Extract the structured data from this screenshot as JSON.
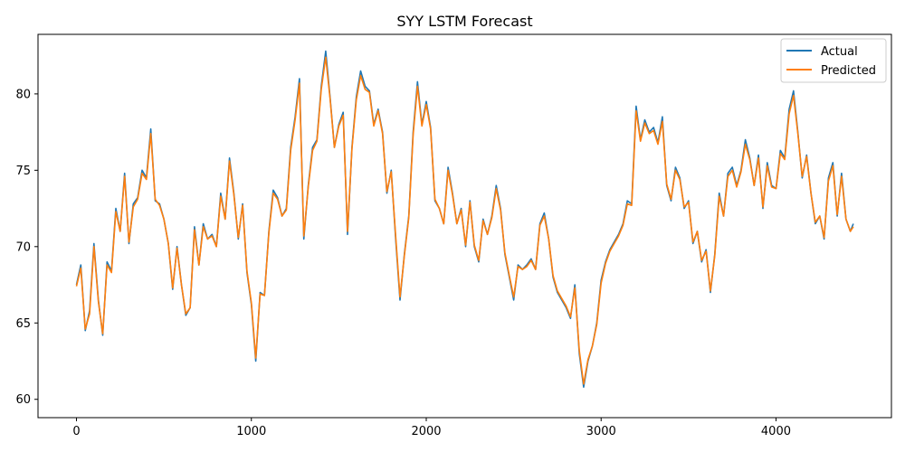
{
  "chart_data": {
    "type": "line",
    "title": "SYY LSTM Forecast",
    "xlabel": "",
    "ylabel": "",
    "xlim": [
      -220,
      4660
    ],
    "ylim": [
      58.8,
      83.9
    ],
    "x_ticks": [
      0,
      1000,
      2000,
      3000,
      4000
    ],
    "x_tick_labels": [
      "0",
      "1000",
      "2000",
      "3000",
      "4000"
    ],
    "y_ticks": [
      60,
      65,
      70,
      75,
      80
    ],
    "y_tick_labels": [
      "60",
      "65",
      "70",
      "75",
      "80"
    ],
    "grid": false,
    "legend_position": "top-right",
    "x": [
      0,
      25,
      50,
      75,
      100,
      125,
      150,
      175,
      200,
      225,
      250,
      275,
      300,
      325,
      350,
      375,
      400,
      425,
      450,
      475,
      500,
      525,
      550,
      575,
      600,
      625,
      650,
      675,
      700,
      725,
      750,
      775,
      800,
      825,
      850,
      875,
      900,
      925,
      950,
      975,
      1000,
      1025,
      1050,
      1075,
      1100,
      1125,
      1150,
      1175,
      1200,
      1225,
      1250,
      1275,
      1300,
      1325,
      1350,
      1375,
      1400,
      1425,
      1450,
      1475,
      1500,
      1525,
      1550,
      1575,
      1600,
      1625,
      1650,
      1675,
      1700,
      1725,
      1750,
      1775,
      1800,
      1825,
      1850,
      1875,
      1900,
      1925,
      1950,
      1975,
      2000,
      2025,
      2050,
      2075,
      2100,
      2125,
      2150,
      2175,
      2200,
      2225,
      2250,
      2275,
      2300,
      2325,
      2350,
      2375,
      2400,
      2425,
      2450,
      2475,
      2500,
      2525,
      2550,
      2575,
      2600,
      2625,
      2650,
      2675,
      2700,
      2725,
      2750,
      2775,
      2800,
      2825,
      2850,
      2875,
      2900,
      2925,
      2950,
      2975,
      3000,
      3025,
      3050,
      3075,
      3100,
      3125,
      3150,
      3175,
      3200,
      3225,
      3250,
      3275,
      3300,
      3325,
      3350,
      3375,
      3400,
      3425,
      3450,
      3475,
      3500,
      3525,
      3550,
      3575,
      3600,
      3625,
      3650,
      3675,
      3700,
      3725,
      3750,
      3775,
      3800,
      3825,
      3850,
      3875,
      3900,
      3925,
      3950,
      3975,
      4000,
      4025,
      4050,
      4075,
      4100,
      4125,
      4150,
      4175,
      4200,
      4225,
      4250,
      4275,
      4300,
      4325,
      4350,
      4375,
      4400,
      4425,
      4442
    ],
    "series": [
      {
        "name": "Actual",
        "color": "#1f77b4",
        "values": [
          67.5,
          68.8,
          64.5,
          65.8,
          70.2,
          66.5,
          64.2,
          69.0,
          68.4,
          72.5,
          71.0,
          74.8,
          70.2,
          72.8,
          73.2,
          75.0,
          74.5,
          77.7,
          73.0,
          72.8,
          71.8,
          70.2,
          67.2,
          70.0,
          67.5,
          65.5,
          66.0,
          71.3,
          68.8,
          71.5,
          70.5,
          70.8,
          70.0,
          73.5,
          71.8,
          75.8,
          73.5,
          70.5,
          72.8,
          68.3,
          66.2,
          62.5,
          67.0,
          66.8,
          71.0,
          73.7,
          73.2,
          72.0,
          72.5,
          76.5,
          78.5,
          81.0,
          70.5,
          74.0,
          76.5,
          77.0,
          80.5,
          82.8,
          79.8,
          76.5,
          78.0,
          78.8,
          70.8,
          76.5,
          79.8,
          81.5,
          80.5,
          80.2,
          78.0,
          79.0,
          77.5,
          73.5,
          75.0,
          70.5,
          66.5,
          69.5,
          72.0,
          77.5,
          80.8,
          78.0,
          79.5,
          77.8,
          73.0,
          72.5,
          71.5,
          75.2,
          73.5,
          71.5,
          72.5,
          70.0,
          73.0,
          70.0,
          69.0,
          71.8,
          70.8,
          72.0,
          74.0,
          72.5,
          69.5,
          68.0,
          66.5,
          68.8,
          68.5,
          68.8,
          69.2,
          68.5,
          71.5,
          72.2,
          70.5,
          68.0,
          67.0,
          66.5,
          66.0,
          65.3,
          67.5,
          63.0,
          60.8,
          62.5,
          63.5,
          65.0,
          67.8,
          69.0,
          69.8,
          70.3,
          70.8,
          71.5,
          73.0,
          72.8,
          79.2,
          77.0,
          78.3,
          77.5,
          77.8,
          76.8,
          78.5,
          74.0,
          73.0,
          75.2,
          74.5,
          72.5,
          73.0,
          70.2,
          71.0,
          69.0,
          69.8,
          67.0,
          69.5,
          73.5,
          72.0,
          74.8,
          75.2,
          74.0,
          75.0,
          77.0,
          75.8,
          74.0,
          76.0,
          72.5,
          75.5,
          74.0,
          73.8,
          76.3,
          75.8,
          79.0,
          80.2,
          77.5,
          74.5,
          76.0,
          73.5,
          71.5,
          72.0,
          70.5,
          74.5,
          75.5,
          72.0,
          74.8,
          71.8,
          71.0,
          71.5
        ]
      },
      {
        "name": "Predicted",
        "color": "#ff7f0e",
        "values": [
          67.4,
          68.6,
          64.6,
          65.6,
          70.0,
          66.4,
          64.3,
          68.8,
          68.3,
          72.3,
          71.0,
          74.6,
          70.3,
          72.6,
          73.1,
          74.8,
          74.4,
          77.4,
          73.1,
          72.7,
          71.8,
          70.2,
          67.3,
          69.9,
          67.5,
          65.6,
          66.0,
          71.1,
          68.8,
          71.3,
          70.5,
          70.7,
          70.0,
          73.3,
          71.8,
          75.6,
          73.4,
          70.6,
          72.7,
          68.4,
          66.3,
          62.7,
          66.9,
          66.8,
          70.9,
          73.5,
          73.1,
          72.0,
          72.4,
          76.3,
          78.3,
          80.7,
          70.7,
          73.9,
          76.3,
          76.9,
          80.3,
          82.4,
          79.7,
          76.5,
          77.9,
          78.6,
          71.0,
          76.4,
          79.6,
          81.2,
          80.3,
          80.1,
          77.9,
          78.9,
          77.4,
          73.6,
          74.9,
          70.7,
          66.7,
          69.4,
          71.9,
          77.3,
          80.5,
          77.9,
          79.3,
          77.7,
          73.1,
          72.5,
          71.5,
          75.0,
          73.4,
          71.5,
          72.4,
          70.1,
          72.9,
          70.1,
          69.1,
          71.7,
          70.8,
          71.9,
          73.8,
          72.4,
          69.6,
          68.1,
          66.7,
          68.7,
          68.5,
          68.7,
          69.1,
          68.5,
          71.4,
          72.0,
          70.5,
          68.1,
          67.1,
          66.6,
          66.1,
          65.4,
          67.3,
          63.2,
          61.0,
          62.6,
          63.5,
          64.9,
          67.6,
          68.9,
          69.7,
          70.2,
          70.7,
          71.4,
          72.8,
          72.7,
          78.9,
          76.9,
          78.1,
          77.4,
          77.6,
          76.7,
          78.2,
          74.1,
          73.1,
          75.0,
          74.4,
          72.6,
          72.9,
          70.3,
          71.0,
          69.1,
          69.7,
          67.1,
          69.4,
          73.3,
          72.0,
          74.6,
          75.0,
          73.9,
          74.9,
          76.7,
          75.7,
          74.0,
          75.8,
          72.6,
          75.3,
          73.9,
          73.8,
          76.1,
          75.7,
          78.7,
          79.9,
          77.4,
          74.6,
          75.9,
          73.5,
          71.6,
          72.0,
          70.6,
          74.3,
          75.3,
          72.1,
          74.6,
          71.8,
          71.0,
          71.3
        ]
      }
    ]
  }
}
